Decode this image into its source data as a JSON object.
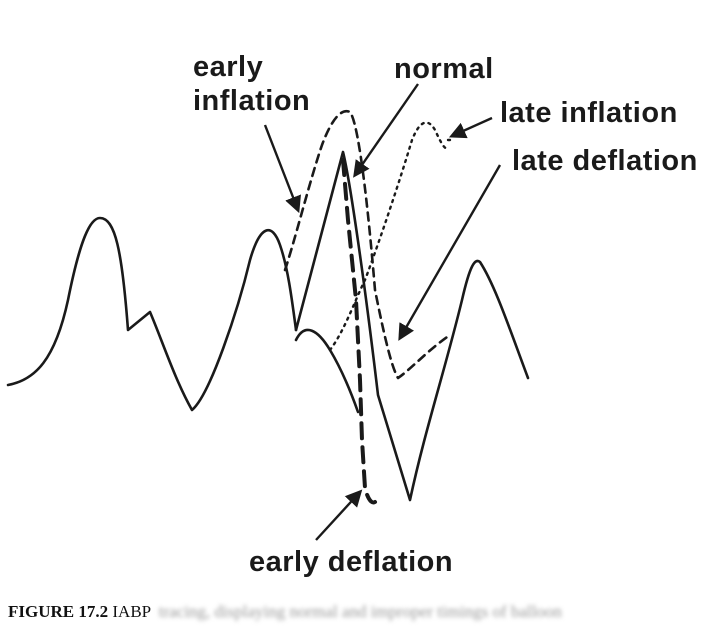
{
  "labels": {
    "early_inflation_line1": "early",
    "early_inflation_line2": "inflation",
    "normal": "normal",
    "late_inflation": "late inflation",
    "late_deflation": "late deflation",
    "early_deflation": "early deflation"
  },
  "caption": {
    "figure_number": "FIGURE 17.2",
    "text": "IABP",
    "obscured_text": "tracing, displaying normal and improper timings of balloon"
  },
  "colors": {
    "line": "#1a1a1a",
    "background": "#ffffff"
  }
}
